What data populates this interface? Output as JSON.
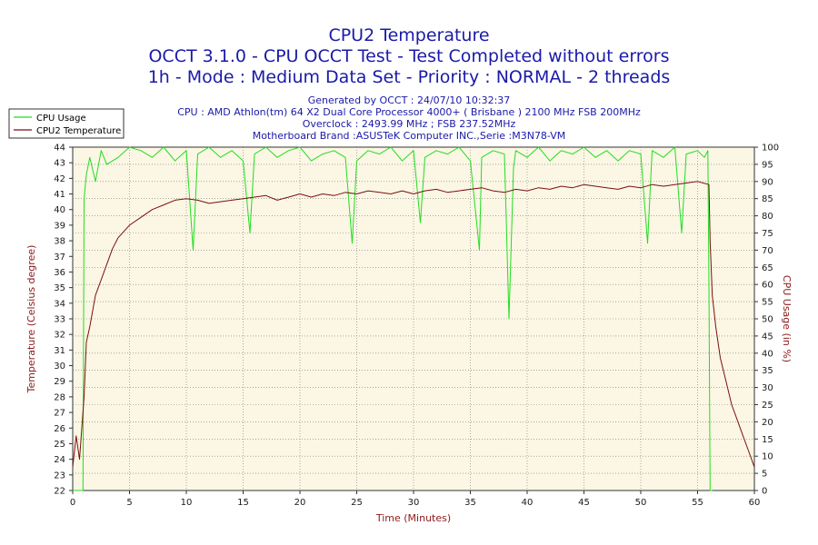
{
  "chart_data": {
    "type": "line",
    "title_lines": [
      "CPU2 Temperature",
      "OCCT 3.1.0 - CPU OCCT Test - Test Completed without errors",
      "1h - Mode : Medium Data Set - Priority : NORMAL - 2 threads"
    ],
    "info_lines": [
      "Generated by OCCT : 24/07/10 10:32:37",
      "CPU : AMD Athlon(tm) 64 X2 Dual Core Processor 4000+ ( Brisbane ) 2100 MHz FSB 200MHz",
      "Overclock : 2493.99 MHz ; FSB 237.52MHz",
      "Motherboard Brand :ASUSTeK Computer INC.,Serie :M3N78-VM"
    ],
    "xlabel": "Time (Minutes)",
    "ylabel_left": "Temperature (Celsius degree)",
    "ylabel_right": "CPU Usage (in %)",
    "xlim": [
      0,
      60
    ],
    "ylim_left": [
      22,
      44
    ],
    "ylim_right": [
      0,
      100
    ],
    "x_ticks": [
      0,
      5,
      10,
      15,
      20,
      25,
      30,
      35,
      40,
      45,
      50,
      55,
      60
    ],
    "y_left_ticks": [
      22,
      23,
      24,
      25,
      26,
      27,
      28,
      29,
      30,
      31,
      32,
      33,
      34,
      35,
      36,
      37,
      38,
      39,
      40,
      41,
      42,
      43,
      44
    ],
    "y_right_ticks": [
      0,
      5,
      10,
      15,
      20,
      25,
      30,
      35,
      40,
      45,
      50,
      55,
      60,
      65,
      70,
      75,
      80,
      85,
      90,
      95,
      100
    ],
    "grid": true,
    "legend_position": "top-left",
    "colors": {
      "cpu_usage": "#22dd22",
      "cpu2_temp": "#7a1010",
      "plot_bg": "#fbf7e4",
      "title": "#1a1aa8",
      "axis_label": "#8b1a1a"
    },
    "series": [
      {
        "name": "CPU Usage",
        "axis": "right",
        "x": [
          0,
          0.9,
          1.0,
          1.2,
          1.5,
          2,
          2.5,
          3,
          4,
          5,
          6,
          7,
          8,
          9,
          10,
          10.6,
          11,
          12,
          13,
          14,
          15,
          15.6,
          16,
          17,
          18,
          19,
          20,
          21,
          22,
          23,
          24,
          24.6,
          25,
          26,
          27,
          28,
          29,
          30,
          30.6,
          31,
          32,
          33,
          34,
          35,
          35.8,
          36,
          37,
          38,
          38.4,
          38.8,
          39,
          40,
          41,
          42,
          43,
          44,
          45,
          46,
          47,
          48,
          49,
          50,
          50.6,
          51,
          52,
          53,
          53.6,
          54,
          55,
          55.6,
          55.9,
          56.0,
          56.1,
          56.3
        ],
        "values": [
          0,
          0,
          85,
          92,
          97,
          90,
          99,
          95,
          97,
          100,
          99,
          97,
          100,
          96,
          99,
          70,
          98,
          100,
          97,
          99,
          96,
          75,
          98,
          100,
          97,
          99,
          100,
          96,
          98,
          99,
          97,
          72,
          96,
          99,
          98,
          100,
          96,
          99,
          78,
          97,
          99,
          98,
          100,
          96,
          70,
          97,
          99,
          98,
          50,
          94,
          99,
          97,
          100,
          96,
          99,
          98,
          100,
          97,
          99,
          96,
          99,
          98,
          72,
          99,
          97,
          100,
          75,
          98,
          99,
          97,
          99,
          60,
          0,
          0
        ]
      },
      {
        "name": "CPU2 Temperature",
        "axis": "left",
        "x": [
          0,
          0.3,
          0.6,
          0.8,
          1.0,
          1.2,
          1.5,
          2,
          2.5,
          3,
          3.5,
          4,
          5,
          6,
          7,
          8,
          9,
          10,
          11,
          12,
          13,
          14,
          15,
          16,
          17,
          18,
          19,
          20,
          21,
          22,
          23,
          24,
          25,
          26,
          27,
          28,
          29,
          30,
          31,
          32,
          33,
          34,
          35,
          36,
          37,
          38,
          39,
          40,
          41,
          42,
          43,
          44,
          45,
          46,
          47,
          48,
          49,
          50,
          51,
          52,
          53,
          54,
          55,
          55.5,
          56.0,
          56.1,
          56.3,
          56.6,
          57,
          57.5,
          58,
          58.5,
          59,
          59.5,
          60
        ],
        "values": [
          23.5,
          25.5,
          24,
          26,
          28,
          31.5,
          32.5,
          34.5,
          35.5,
          36.5,
          37.5,
          38.2,
          39,
          39.5,
          40,
          40.3,
          40.6,
          40.7,
          40.6,
          40.4,
          40.5,
          40.6,
          40.7,
          40.8,
          40.9,
          40.6,
          40.8,
          41,
          40.8,
          41,
          40.9,
          41.1,
          41,
          41.2,
          41.1,
          41,
          41.2,
          41,
          41.2,
          41.3,
          41.1,
          41.2,
          41.3,
          41.4,
          41.2,
          41.1,
          41.3,
          41.2,
          41.4,
          41.3,
          41.5,
          41.4,
          41.6,
          41.5,
          41.4,
          41.3,
          41.5,
          41.4,
          41.6,
          41.5,
          41.6,
          41.7,
          41.8,
          41.7,
          41.6,
          38,
          34.5,
          32.5,
          30.5,
          29,
          27.5,
          26.5,
          25.5,
          24.5,
          23.5
        ]
      }
    ]
  }
}
